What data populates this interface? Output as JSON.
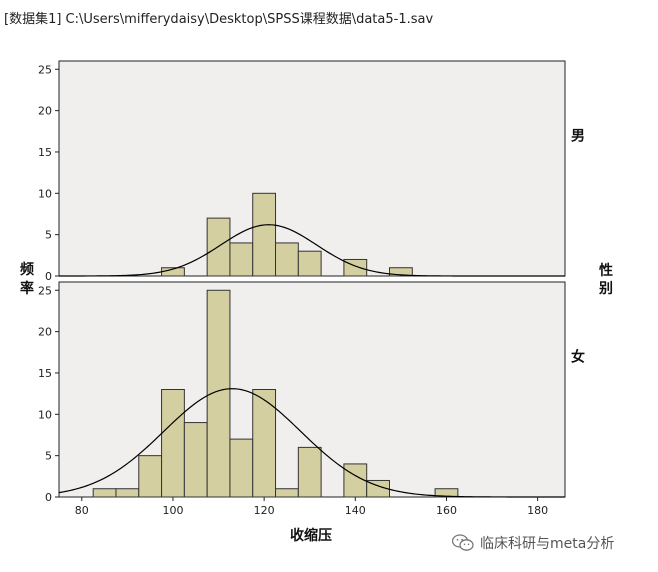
{
  "header": {
    "path": "[数据集1] C:\\Users\\mifferydaisy\\Desktop\\SPSS课程数据\\data5-1.sav"
  },
  "watermark": {
    "text": "临床科研与meta分析",
    "icon": "wechat-icon"
  },
  "colors": {
    "panel_bg": "#f0efee",
    "bar_fill": "#d4cfa0",
    "bar_stroke": "#333333",
    "curve": "#000000"
  },
  "chart_data": {
    "type": "bar",
    "chart_subtype": "faceted histogram with normal curve",
    "xlabel": "收缩压",
    "ylabel": "频率",
    "facet_label": "性别",
    "xlim": [
      75,
      186
    ],
    "x_ticks": [
      80,
      100,
      120,
      140,
      160,
      180
    ],
    "ylim": [
      0,
      26
    ],
    "y_ticks": [
      0,
      5,
      10,
      15,
      20,
      25
    ],
    "bin_width": 5,
    "grid": false,
    "panels": [
      {
        "facet": "男",
        "bins": [
          {
            "x0": 97.5,
            "x1": 102.5,
            "count": 1
          },
          {
            "x0": 107.5,
            "x1": 112.5,
            "count": 7
          },
          {
            "x0": 112.5,
            "x1": 117.5,
            "count": 4
          },
          {
            "x0": 117.5,
            "x1": 122.5,
            "count": 10
          },
          {
            "x0": 122.5,
            "x1": 127.5,
            "count": 4
          },
          {
            "x0": 127.5,
            "x1": 132.5,
            "count": 3
          },
          {
            "x0": 137.5,
            "x1": 142.5,
            "count": 2
          },
          {
            "x0": 147.5,
            "x1": 152.5,
            "count": 1
          }
        ],
        "normal_curve": {
          "mean": 121,
          "sd": 10.5,
          "peak": 6.2
        }
      },
      {
        "facet": "女",
        "bins": [
          {
            "x0": 82.5,
            "x1": 87.5,
            "count": 1
          },
          {
            "x0": 87.5,
            "x1": 92.5,
            "count": 1
          },
          {
            "x0": 92.5,
            "x1": 97.5,
            "count": 5
          },
          {
            "x0": 97.5,
            "x1": 102.5,
            "count": 13
          },
          {
            "x0": 102.5,
            "x1": 107.5,
            "count": 9
          },
          {
            "x0": 107.5,
            "x1": 112.5,
            "count": 25
          },
          {
            "x0": 112.5,
            "x1": 117.5,
            "count": 7
          },
          {
            "x0": 117.5,
            "x1": 122.5,
            "count": 13
          },
          {
            "x0": 122.5,
            "x1": 127.5,
            "count": 1
          },
          {
            "x0": 127.5,
            "x1": 132.5,
            "count": 6
          },
          {
            "x0": 137.5,
            "x1": 142.5,
            "count": 4
          },
          {
            "x0": 142.5,
            "x1": 147.5,
            "count": 2
          },
          {
            "x0": 157.5,
            "x1": 162.5,
            "count": 1
          }
        ],
        "normal_curve": {
          "mean": 113,
          "sd": 15,
          "peak": 13.1
        }
      }
    ]
  }
}
